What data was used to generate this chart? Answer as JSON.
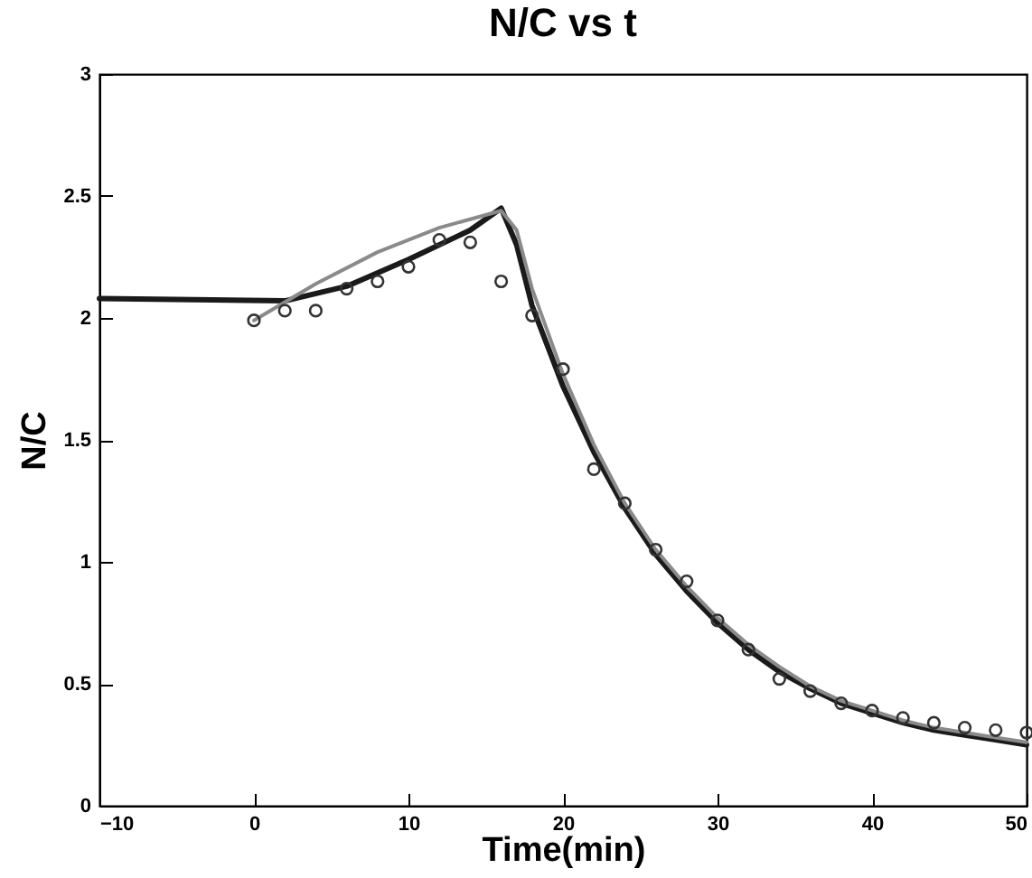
{
  "chart_data": {
    "type": "line",
    "title": "N/C vs t",
    "xlabel": "Time(min)",
    "ylabel": "N/C",
    "xlim": [
      -10,
      50
    ],
    "xticks": [
      -10,
      0,
      10,
      20,
      30,
      40,
      50
    ],
    "ylim": [
      0,
      3
    ],
    "yticks": [
      0,
      0.5,
      1,
      1.5,
      2,
      2.5,
      3
    ],
    "grid": false,
    "series": [
      {
        "color": "#1a1a1a",
        "x": [
          -10,
          2,
          6,
          10,
          14,
          16,
          17,
          18,
          20,
          22,
          24,
          26,
          28,
          30,
          32,
          34,
          36,
          38,
          40,
          42,
          44,
          46,
          48,
          50
        ],
        "values": [
          2.08,
          2.07,
          2.13,
          2.24,
          2.36,
          2.45,
          2.3,
          2.05,
          1.72,
          1.45,
          1.22,
          1.03,
          0.88,
          0.75,
          0.64,
          0.55,
          0.48,
          0.42,
          0.38,
          0.34,
          0.31,
          0.29,
          0.27,
          0.25
        ]
      },
      {
        "color": "#8a8a8a",
        "x": [
          0,
          4,
          8,
          12,
          16,
          17,
          18,
          20,
          22,
          24,
          26,
          28,
          30,
          32,
          34,
          36,
          38,
          40,
          42,
          44,
          46,
          48,
          50
        ],
        "values": [
          1.99,
          2.14,
          2.27,
          2.37,
          2.44,
          2.36,
          2.12,
          1.77,
          1.48,
          1.24,
          1.05,
          0.9,
          0.77,
          0.66,
          0.57,
          0.49,
          0.43,
          0.39,
          0.35,
          0.32,
          0.3,
          0.28,
          0.26
        ]
      },
      {
        "type": "scatter",
        "color": "#333333",
        "marker": "circle",
        "x": [
          0,
          2,
          4,
          6,
          8,
          10,
          12,
          14,
          16,
          18,
          20,
          22,
          24,
          26,
          28,
          30,
          32,
          34,
          36,
          38,
          40,
          42,
          44,
          46,
          48,
          50
        ],
        "values": [
          1.99,
          2.03,
          2.03,
          2.12,
          2.15,
          2.21,
          2.32,
          2.31,
          2.15,
          2.01,
          1.79,
          1.38,
          1.24,
          1.05,
          0.92,
          0.76,
          0.64,
          0.52,
          0.47,
          0.42,
          0.39,
          0.36,
          0.34,
          0.32,
          0.31,
          0.3
        ]
      }
    ]
  }
}
